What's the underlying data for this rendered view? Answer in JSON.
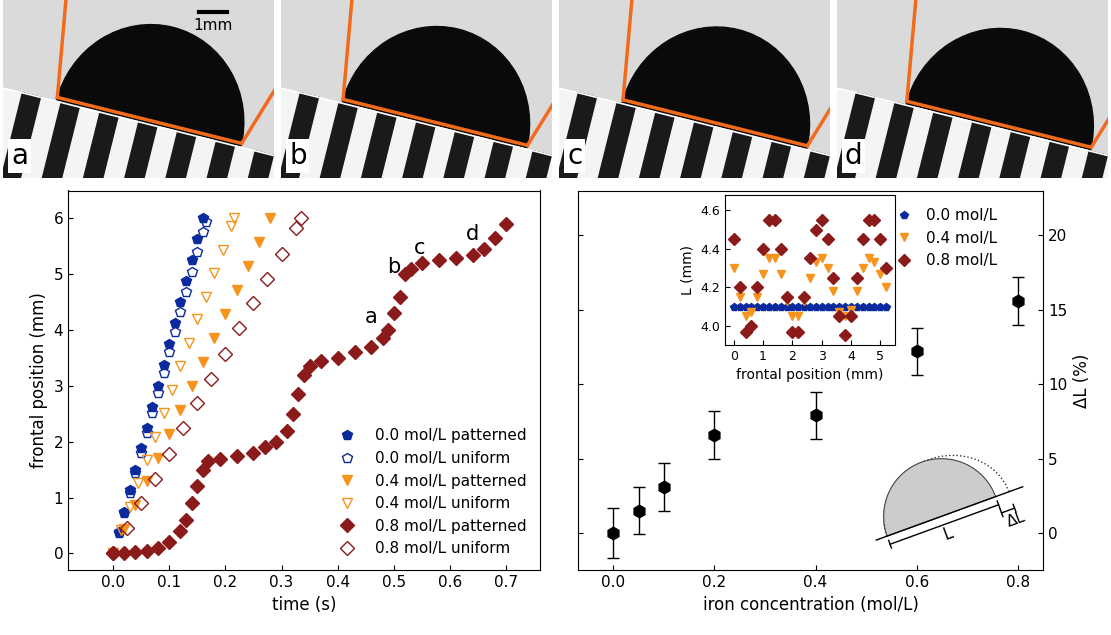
{
  "panels": {
    "labels": [
      "a",
      "b",
      "c",
      "d"
    ],
    "scale_bar": "1mm"
  },
  "chart_data": [
    {
      "type": "scatter",
      "xlabel": "time (s)",
      "ylabel": "frontal position (mm)",
      "xlim": [
        -0.08,
        0.76
      ],
      "xticks": [
        0.0,
        0.1,
        0.2,
        0.3,
        0.4,
        0.5,
        0.6,
        0.7
      ],
      "ylim": [
        -0.3,
        6.5
      ],
      "yticks": [
        0,
        1,
        2,
        3,
        4,
        5,
        6
      ],
      "legend": "lower right",
      "annotations": [
        {
          "text": "a",
          "x": 0.46,
          "y": 4.05
        },
        {
          "text": "b",
          "x": 0.5,
          "y": 4.95
        },
        {
          "text": "c",
          "x": 0.545,
          "y": 5.3
        },
        {
          "text": "d",
          "x": 0.64,
          "y": 5.55
        }
      ],
      "series": [
        {
          "name": "0.0 mol/L patterned",
          "color": "#0b2a9e",
          "marker": "pentagon",
          "x": [
            0.0,
            0.01,
            0.02,
            0.03,
            0.04,
            0.05,
            0.06,
            0.07,
            0.08,
            0.09,
            0.1,
            0.11,
            0.12,
            0.13,
            0.14,
            0.15,
            0.16
          ],
          "values": [
            0,
            0.38,
            0.75,
            1.13,
            1.5,
            1.88,
            2.25,
            2.63,
            3.0,
            3.38,
            3.75,
            4.13,
            4.5,
            4.88,
            5.25,
            5.63,
            6.0
          ]
        },
        {
          "name": "0.0 mol/L uniform",
          "color": "#0b2a9e",
          "marker": "open_pentagon",
          "x": [
            0.0,
            0.01,
            0.02,
            0.03,
            0.04,
            0.05,
            0.06,
            0.07,
            0.08,
            0.09,
            0.1,
            0.11,
            0.12,
            0.13,
            0.14,
            0.15,
            0.16,
            0.165
          ],
          "values": [
            0,
            0.36,
            0.72,
            1.08,
            1.44,
            1.8,
            2.16,
            2.52,
            2.88,
            3.24,
            3.6,
            3.96,
            4.32,
            4.68,
            5.04,
            5.4,
            5.76,
            5.94
          ]
        },
        {
          "name": "0.4 mol/L patterned",
          "color": "#f7941d",
          "marker": "triangle_down",
          "x": [
            0.0,
            0.02,
            0.04,
            0.06,
            0.08,
            0.1,
            0.12,
            0.14,
            0.16,
            0.18,
            0.2,
            0.22,
            0.24,
            0.26,
            0.28
          ],
          "values": [
            0,
            0.43,
            0.86,
            1.29,
            1.71,
            2.14,
            2.57,
            3.0,
            3.43,
            3.86,
            4.29,
            4.71,
            5.14,
            5.57,
            6.0
          ]
        },
        {
          "name": "0.4 mol/L uniform",
          "color": "#f7941d",
          "marker": "open_triangle_down",
          "x": [
            0.0,
            0.015,
            0.03,
            0.045,
            0.06,
            0.075,
            0.09,
            0.105,
            0.12,
            0.135,
            0.15,
            0.165,
            0.18,
            0.195,
            0.21,
            0.215
          ],
          "values": [
            0,
            0.42,
            0.84,
            1.26,
            1.67,
            2.09,
            2.51,
            2.93,
            3.35,
            3.77,
            4.19,
            4.6,
            5.02,
            5.44,
            5.86,
            6.0
          ]
        },
        {
          "name": "0.8 mol/L patterned",
          "color": "#8b1a1a",
          "marker": "diamond",
          "x": [
            0.0,
            0.02,
            0.04,
            0.06,
            0.08,
            0.1,
            0.12,
            0.13,
            0.14,
            0.15,
            0.16,
            0.17,
            0.19,
            0.22,
            0.25,
            0.27,
            0.29,
            0.31,
            0.32,
            0.33,
            0.34,
            0.35,
            0.37,
            0.4,
            0.43,
            0.46,
            0.48,
            0.49,
            0.5,
            0.51,
            0.52,
            0.53,
            0.55,
            0.58,
            0.61,
            0.64,
            0.66,
            0.68,
            0.7
          ],
          "values": [
            0,
            0,
            0.02,
            0.05,
            0.1,
            0.2,
            0.4,
            0.6,
            0.9,
            1.2,
            1.5,
            1.65,
            1.7,
            1.75,
            1.8,
            1.9,
            2.0,
            2.2,
            2.5,
            2.85,
            3.2,
            3.35,
            3.45,
            3.5,
            3.6,
            3.7,
            3.85,
            4.0,
            4.3,
            4.6,
            5.0,
            5.1,
            5.2,
            5.25,
            5.3,
            5.35,
            5.45,
            5.65,
            5.9
          ]
        },
        {
          "name": "0.8 mol/L uniform",
          "color": "#8b1a1a",
          "marker": "open_diamond",
          "x": [
            0.0,
            0.025,
            0.05,
            0.075,
            0.1,
            0.125,
            0.15,
            0.175,
            0.2,
            0.225,
            0.25,
            0.275,
            0.3,
            0.325,
            0.335
          ],
          "values": [
            0,
            0.45,
            0.9,
            1.34,
            1.79,
            2.24,
            2.69,
            3.13,
            3.58,
            4.03,
            4.48,
            4.92,
            5.37,
            5.82,
            6.0
          ]
        }
      ]
    },
    {
      "type": "scatter",
      "xlabel": "iron concentration (mol/L)",
      "ylabel": "ΔL (%)",
      "xlim": [
        -0.07,
        0.85
      ],
      "xticks": [
        0.0,
        0.2,
        0.4,
        0.6,
        0.8
      ],
      "ylim": [
        -2.5,
        23
      ],
      "yticks": [
        0,
        5,
        10,
        15,
        20
      ],
      "color": "#000000",
      "marker": "hexagon",
      "x": [
        0.0,
        0.05,
        0.1,
        0.2,
        0.4,
        0.6,
        0.8
      ],
      "values": [
        0,
        1.5,
        3.1,
        6.6,
        7.9,
        12.2,
        15.6
      ],
      "errors": [
        1.7,
        1.6,
        1.6,
        1.6,
        1.6,
        1.6,
        1.6
      ],
      "annotations": [
        {
          "text": "L"
        },
        {
          "text": "ΔL"
        }
      ]
    },
    {
      "type": "scatter",
      "xlabel": "frontal position (mm)",
      "ylabel": "L (mm)",
      "xlim": [
        -0.3,
        5.5
      ],
      "xticks": [
        0,
        1,
        2,
        3,
        4,
        5
      ],
      "ylim": [
        3.9,
        4.68
      ],
      "yticks": [
        4.0,
        4.2,
        4.4,
        4.6
      ],
      "legend": "upper right",
      "series": [
        {
          "name": "0.0 mol/L",
          "color": "#0b2a9e",
          "marker": "pentagon",
          "x": [
            0.0,
            0.2,
            0.4,
            0.6,
            0.8,
            1.0,
            1.2,
            1.4,
            1.6,
            1.8,
            2.0,
            2.2,
            2.4,
            2.6,
            2.8,
            3.0,
            3.2,
            3.4,
            3.6,
            3.8,
            4.0,
            4.2,
            4.4,
            4.6,
            4.8,
            5.0,
            5.2
          ],
          "values": [
            4.1,
            4.1,
            4.1,
            4.1,
            4.1,
            4.1,
            4.1,
            4.1,
            4.1,
            4.1,
            4.1,
            4.1,
            4.1,
            4.1,
            4.1,
            4.1,
            4.1,
            4.1,
            4.1,
            4.1,
            4.1,
            4.1,
            4.1,
            4.1,
            4.1,
            4.1,
            4.1
          ]
        },
        {
          "name": "0.4 mol/L",
          "color": "#f7941d",
          "marker": "triangle_down",
          "x": [
            0.0,
            0.2,
            0.4,
            0.6,
            0.8,
            1.0,
            1.2,
            1.4,
            1.6,
            1.8,
            2.0,
            2.2,
            2.4,
            2.6,
            2.8,
            3.0,
            3.2,
            3.4,
            3.6,
            3.8,
            4.0,
            4.2,
            4.4,
            4.6,
            4.8,
            5.0,
            5.2
          ],
          "values": [
            4.3,
            4.15,
            4.05,
            4.07,
            4.15,
            4.27,
            4.35,
            4.35,
            4.27,
            4.13,
            4.05,
            4.05,
            4.13,
            4.25,
            4.33,
            4.35,
            4.3,
            4.18,
            4.07,
            4.05,
            4.08,
            4.18,
            4.3,
            4.35,
            4.33,
            4.27,
            4.2
          ]
        },
        {
          "name": "0.8 mol/L",
          "color": "#8b1a1a",
          "marker": "diamond",
          "x": [
            0.0,
            0.2,
            0.4,
            0.6,
            0.8,
            1.0,
            1.2,
            1.4,
            1.6,
            1.8,
            2.0,
            2.2,
            2.4,
            2.6,
            2.8,
            3.0,
            3.2,
            3.4,
            3.6,
            3.8,
            4.0,
            4.2,
            4.4,
            4.6,
            4.8,
            5.0,
            5.2
          ],
          "values": [
            4.45,
            4.2,
            3.97,
            4.0,
            4.2,
            4.4,
            4.55,
            4.55,
            4.4,
            4.15,
            3.97,
            3.97,
            4.15,
            4.35,
            4.5,
            4.55,
            4.45,
            4.25,
            4.05,
            3.95,
            4.05,
            4.25,
            4.45,
            4.55,
            4.55,
            4.45,
            4.3
          ]
        }
      ]
    }
  ]
}
